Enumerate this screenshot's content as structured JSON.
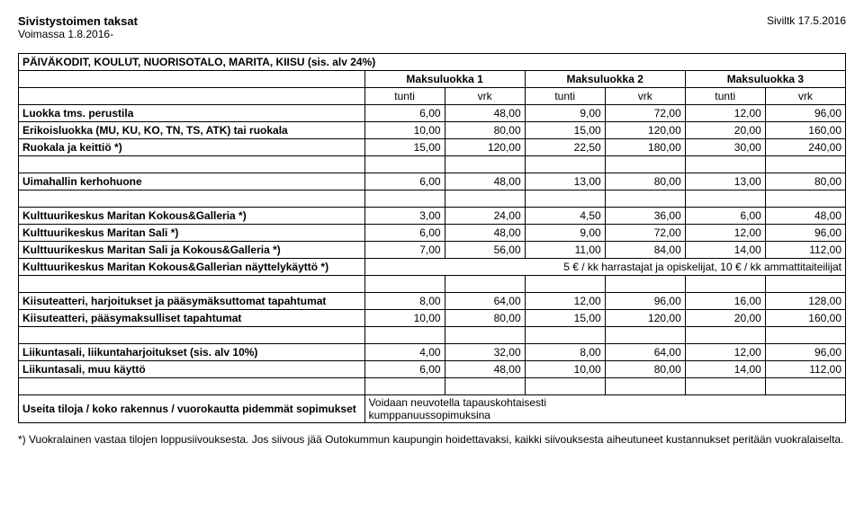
{
  "header": {
    "title_left1": "Sivistystoimen taksat",
    "title_left2": "Voimassa 1.8.2016-",
    "title_right": "Siviltk 17.5.2016"
  },
  "section_title": "PÄIVÄKODIT, KOULUT, NUORISOTALO, MARITA, KIISU (sis. alv 24%)",
  "group_headers": [
    "Maksuluokka 1",
    "Maksuluokka 2",
    "Maksuluokka 3"
  ],
  "sub_headers": [
    "tunti",
    "vrk",
    "tunti",
    "vrk",
    "tunti",
    "vrk"
  ],
  "rows1": [
    {
      "label": "Luokka tms. perustila",
      "v": [
        "6,00",
        "48,00",
        "9,00",
        "72,00",
        "12,00",
        "96,00"
      ]
    },
    {
      "label": "Erikoisluokka (MU, KU, KO, TN, TS, ATK) tai ruokala",
      "v": [
        "10,00",
        "80,00",
        "15,00",
        "120,00",
        "20,00",
        "160,00"
      ]
    },
    {
      "label": "Ruokala ja keittiö *)",
      "v": [
        "15,00",
        "120,00",
        "22,50",
        "180,00",
        "30,00",
        "240,00"
      ]
    }
  ],
  "rows_uima": {
    "label": "Uimahallin kerhohuone",
    "v": [
      "6,00",
      "48,00",
      "13,00",
      "80,00",
      "13,00",
      "80,00"
    ]
  },
  "rows_kulttuuri": [
    {
      "label": "Kulttuurikeskus Maritan Kokous&Galleria *)",
      "v": [
        "3,00",
        "24,00",
        "4,50",
        "36,00",
        "6,00",
        "48,00"
      ]
    },
    {
      "label": "Kulttuurikeskus Maritan Sali *)",
      "v": [
        "6,00",
        "48,00",
        "9,00",
        "72,00",
        "12,00",
        "96,00"
      ]
    },
    {
      "label": "Kulttuurikeskus Maritan Sali ja Kokous&Galleria *)",
      "v": [
        "7,00",
        "56,00",
        "11,00",
        "84,00",
        "14,00",
        "112,00"
      ]
    }
  ],
  "row_nayttely": {
    "label": "Kulttuurikeskus Maritan Kokous&Gallerian näyttelykäyttö *)",
    "text": "5 € / kk harrastajat ja opiskelijat, 10 € / kk ammattitaiteilijat"
  },
  "rows_kiisu": [
    {
      "label": "Kiisuteatteri, harjoitukset ja pääsymäksuttomat tapahtumat",
      "v": [
        "8,00",
        "64,00",
        "12,00",
        "96,00",
        "16,00",
        "128,00"
      ]
    },
    {
      "label": "Kiisuteatteri, pääsymaksulliset tapahtumat",
      "v": [
        "10,00",
        "80,00",
        "15,00",
        "120,00",
        "20,00",
        "160,00"
      ]
    }
  ],
  "rows_liikunta": [
    {
      "label": "Liikuntasali, liikuntaharjoitukset (sis. alv 10%)",
      "v": [
        "4,00",
        "32,00",
        "8,00",
        "64,00",
        "12,00",
        "96,00"
      ]
    },
    {
      "label": "Liikuntasali, muu käyttö",
      "v": [
        "6,00",
        "48,00",
        "10,00",
        "80,00",
        "14,00",
        "112,00"
      ]
    }
  ],
  "row_sopimus": {
    "label": "Useita tiloja / koko rakennus / vuorokautta pidemmät sopimukset",
    "text1": "Voidaan neuvotella tapauskohtaisesti",
    "text2": "kumppanuussopimuksina"
  },
  "footer": "*) Vuokralainen vastaa tilojen loppusiivouksesta. Jos siivous jää Outokummun kaupungin hoidettavaksi, kaikki siivouksesta aiheutuneet kustannukset peritään vuokralaiselta."
}
